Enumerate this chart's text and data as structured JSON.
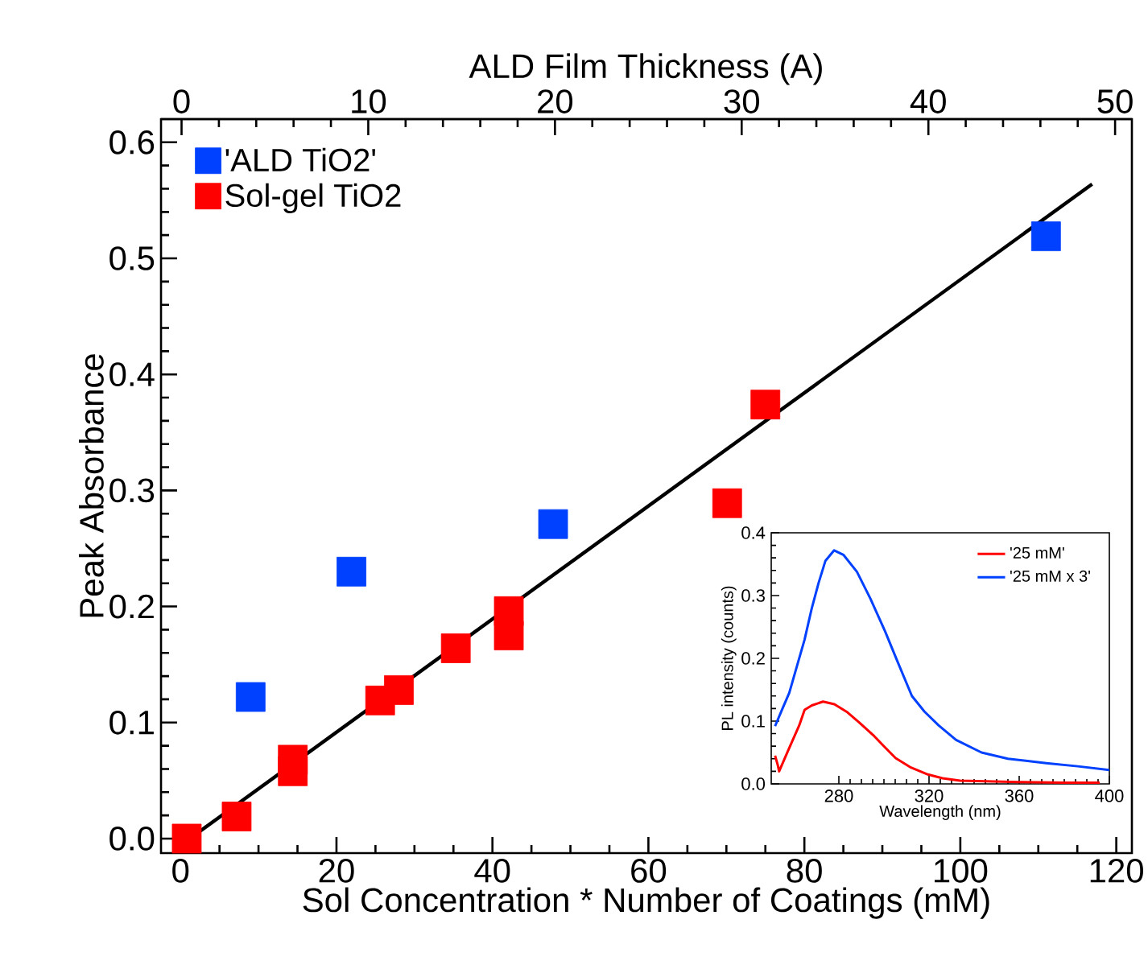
{
  "chart_data": [
    {
      "type": "scatter",
      "xlabel": "Sol Concentration * Number of Coatings (mM)",
      "x2label": "ALD Film Thickness (A)",
      "ylabel": "Peak Absorbance",
      "xlim": [
        -2.5,
        122
      ],
      "xticks": [
        0,
        20,
        40,
        60,
        80,
        100,
        120
      ],
      "x2lim": [
        -1.1,
        50.9
      ],
      "x2ticks": [
        0,
        10,
        20,
        30,
        40,
        50
      ],
      "ylim": [
        -0.0125,
        0.62
      ],
      "yticks": [
        {
          "value": 0,
          "label": "0.0"
        },
        0.1,
        0.2,
        0.3,
        0.4,
        0.5,
        0.6
      ],
      "legend": "top left",
      "series": [
        {
          "name": "'ALD TiO2'",
          "color": "#0040ff",
          "marker": "square",
          "axis": "x2",
          "x": [
            3.7,
            9.1,
            19.9,
            46.3
          ],
          "values": [
            0.122,
            0.23,
            0.271,
            0.519
          ]
        },
        {
          "name": "Sol-gel TiO2",
          "color": "#ff0000",
          "marker": "square",
          "x": [
            0.8,
            7.2,
            14.4,
            14.4,
            25.6,
            28.0,
            35.3,
            42.1,
            42.1,
            70.1,
            75.0
          ],
          "values": [
            0.0,
            0.019,
            0.068,
            0.058,
            0.119,
            0.128,
            0.164,
            0.196,
            0.175,
            0.289,
            0.374
          ]
        },
        {
          "type": "line",
          "color": "#000000",
          "x": [
            1.2,
            116.9
          ],
          "values": [
            0.0,
            0.564
          ]
        }
      ]
    },
    {
      "type": "line",
      "xlabel": "Wavelength (nm)",
      "ylabel": "PL intensity (counts)",
      "xlim": [
        250,
        400
      ],
      "xticks": [
        280,
        320,
        360,
        400
      ],
      "ylim": [
        0,
        0.4
      ],
      "yticks": [
        {
          "value": 0,
          "label": "0.0"
        },
        0.1,
        0.2,
        0.3,
        0.4
      ],
      "legend": "top right",
      "series": [
        {
          "name": "'25 mM'",
          "color": "#ff0000",
          "x": [
            251.7,
            252.9,
            253.5,
            257.6,
            262.4,
            264.8,
            268,
            273,
            278,
            283.8,
            289,
            295.7,
            300,
            305.2,
            312,
            319.5,
            326,
            333.8,
            345,
            360,
            380,
            395.7
          ],
          "values": [
            0.045,
            0.03,
            0.02,
            0.054,
            0.093,
            0.118,
            0.125,
            0.131,
            0.127,
            0.114,
            0.098,
            0.076,
            0.06,
            0.041,
            0.026,
            0.015,
            0.009,
            0.005,
            0.004,
            0.003,
            0.002,
            0.002
          ]
        },
        {
          "name": "'25 mM x 3'",
          "color": "#0040ff",
          "x": [
            251.7,
            255,
            258,
            260,
            262,
            264.8,
            268,
            271,
            274,
            277.9,
            282,
            288,
            294,
            300.5,
            306,
            312.4,
            318,
            324.3,
            332,
            343.3,
            355,
            372,
            386,
            400
          ],
          "values": [
            0.092,
            0.12,
            0.145,
            0.17,
            0.195,
            0.23,
            0.28,
            0.32,
            0.355,
            0.372,
            0.365,
            0.338,
            0.295,
            0.243,
            0.195,
            0.14,
            0.115,
            0.093,
            0.07,
            0.05,
            0.04,
            0.033,
            0.028,
            0.022
          ]
        }
      ]
    }
  ]
}
